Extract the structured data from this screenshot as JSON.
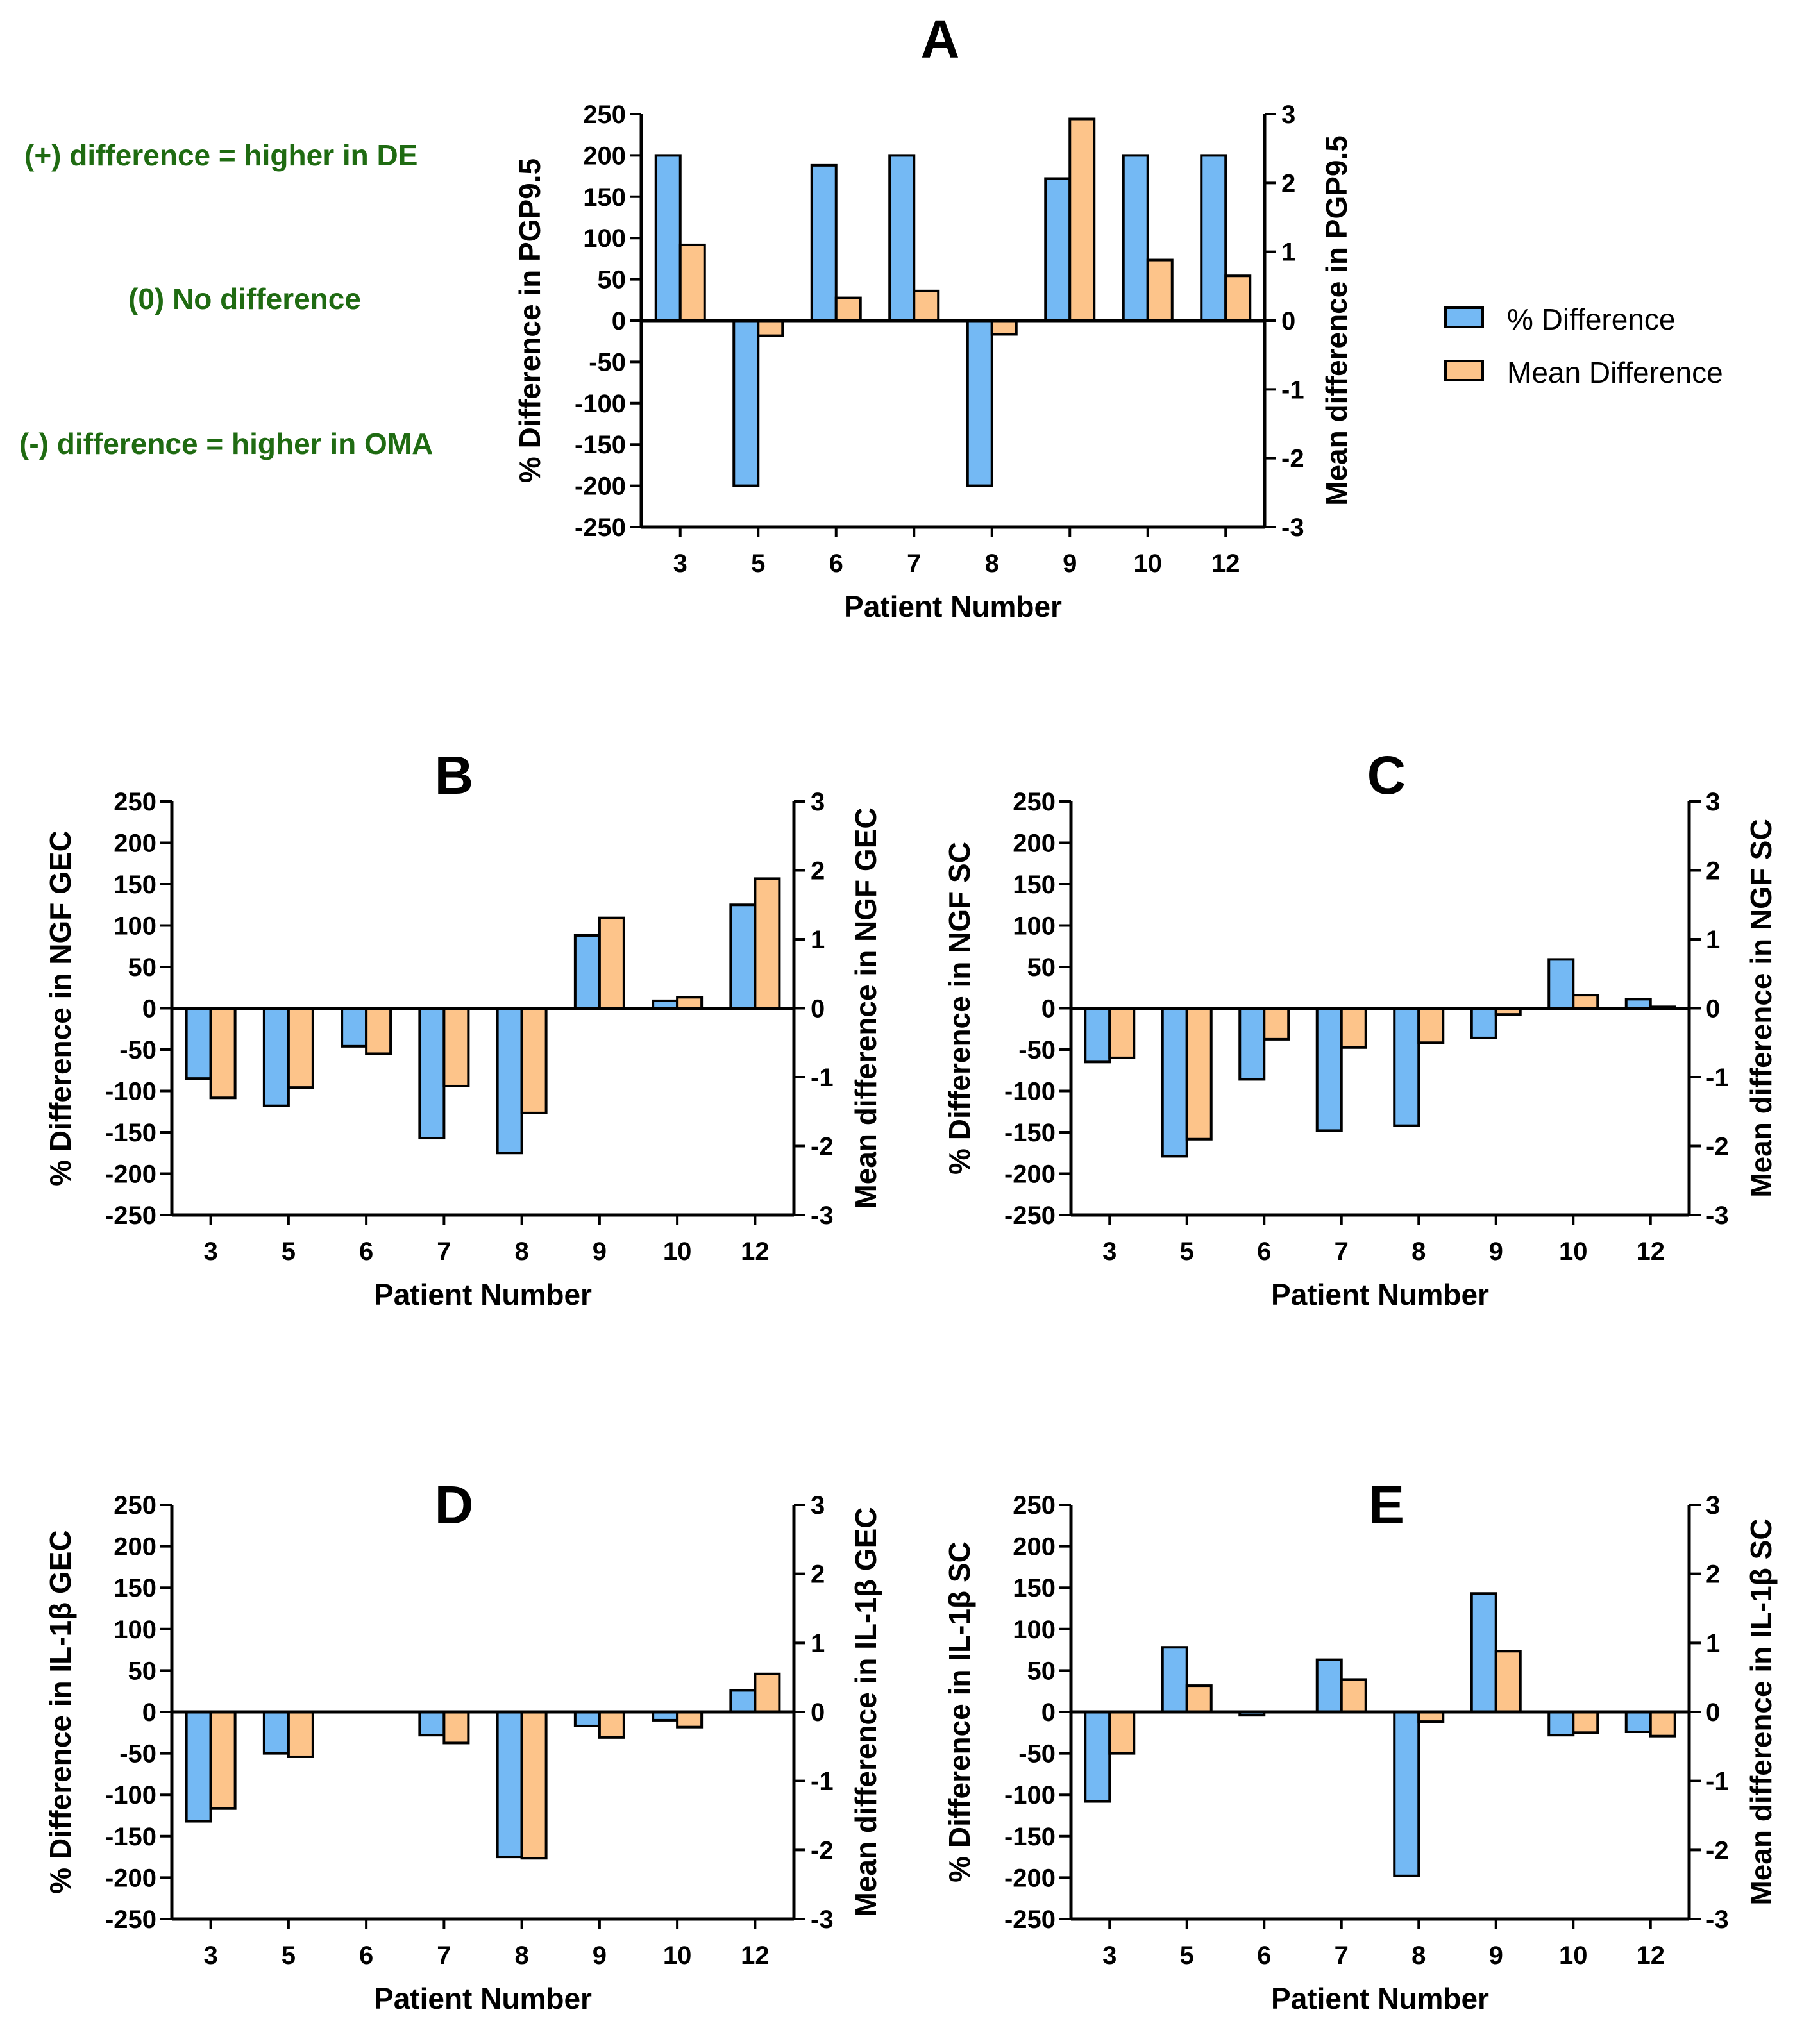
{
  "notes": {
    "positive": "(+) difference = higher in DE",
    "zero": "(0) No difference",
    "negative": "(-) difference = higher in OMA"
  },
  "legend": {
    "pct_label": "% Difference",
    "mean_label": "Mean Difference"
  },
  "colors": {
    "pct": "#74b9f4",
    "mean": "#fdc48a",
    "note": "#1f6b12"
  },
  "chart_data": [
    {
      "type": "bar",
      "panel": "A",
      "categories": [
        "3",
        "5",
        "6",
        "7",
        "8",
        "9",
        "10",
        "12"
      ],
      "series": [
        {
          "name": "% Difference",
          "axis": "left",
          "values": [
            200,
            -200,
            188,
            200,
            -200,
            172,
            200,
            200
          ]
        },
        {
          "name": "Mean Difference",
          "axis": "right",
          "values": [
            1.1,
            -0.22,
            0.33,
            0.43,
            -0.2,
            2.93,
            0.88,
            0.65
          ]
        }
      ],
      "xlabel": "Patient Number",
      "ylabel": "% Difference in PGP9.5",
      "y2label": "Mean difference in PGP9.5",
      "ylim": [
        -250,
        250
      ],
      "y2lim": [
        -3,
        3
      ],
      "yticks": [
        "250",
        "200",
        "150",
        "100",
        "50",
        "0",
        "-50",
        "-100",
        "-150",
        "-200",
        "-250"
      ],
      "y2ticks": [
        "3",
        "2",
        "1",
        "0",
        "-1",
        "-2",
        "-3"
      ]
    },
    {
      "type": "bar",
      "panel": "B",
      "categories": [
        "3",
        "5",
        "6",
        "7",
        "8",
        "9",
        "10",
        "12"
      ],
      "series": [
        {
          "name": "% Difference",
          "axis": "left",
          "values": [
            -85,
            -118,
            -46,
            -157,
            -175,
            88,
            9,
            125
          ]
        },
        {
          "name": "Mean Difference",
          "axis": "right",
          "values": [
            -1.3,
            -1.15,
            -0.66,
            -1.13,
            -1.52,
            1.31,
            0.16,
            1.88
          ]
        }
      ],
      "xlabel": "Patient Number",
      "ylabel": "% Difference in NGF GEC",
      "y2label": "Mean difference in NGF GEC",
      "ylim": [
        -250,
        250
      ],
      "y2lim": [
        -3,
        3
      ],
      "yticks": [
        "250",
        "200",
        "150",
        "100",
        "50",
        "0",
        "-50",
        "-100",
        "-150",
        "-200",
        "-250"
      ],
      "y2ticks": [
        "3",
        "2",
        "1",
        "0",
        "-1",
        "-2",
        "-3"
      ]
    },
    {
      "type": "bar",
      "panel": "C",
      "categories": [
        "3",
        "5",
        "6",
        "7",
        "8",
        "9",
        "10",
        "12"
      ],
      "series": [
        {
          "name": "% Difference",
          "axis": "left",
          "values": [
            -65,
            -179,
            -86,
            -148,
            -142,
            -36,
            59,
            11
          ]
        },
        {
          "name": "Mean Difference",
          "axis": "right",
          "values": [
            -0.72,
            -1.9,
            -0.45,
            -0.57,
            -0.5,
            -0.09,
            0.19,
            0.02
          ]
        }
      ],
      "xlabel": "Patient Number",
      "ylabel": "% Difference in NGF SC",
      "y2label": "Mean difference in NGF SC",
      "ylim": [
        -250,
        250
      ],
      "y2lim": [
        -3,
        3
      ],
      "yticks": [
        "250",
        "200",
        "150",
        "100",
        "50",
        "0",
        "-50",
        "-100",
        "-150",
        "-200",
        "-250"
      ],
      "y2ticks": [
        "3",
        "2",
        "1",
        "0",
        "-1",
        "-2",
        "-3"
      ]
    },
    {
      "type": "bar",
      "panel": "D",
      "categories": [
        "3",
        "5",
        "6",
        "7",
        "8",
        "9",
        "10",
        "12"
      ],
      "series": [
        {
          "name": "% Difference",
          "axis": "left",
          "values": [
            -132,
            -50,
            0,
            -28,
            -175,
            -17,
            -10,
            26
          ]
        },
        {
          "name": "Mean Difference",
          "axis": "right",
          "values": [
            -1.4,
            -0.65,
            0,
            -0.45,
            -2.12,
            -0.37,
            -0.22,
            0.55
          ]
        }
      ],
      "xlabel": "Patient Number",
      "ylabel": "% Difference in IL-1β GEC",
      "y2label": "Mean difference in IL-1β GEC",
      "ylim": [
        -250,
        250
      ],
      "y2lim": [
        -3,
        3
      ],
      "yticks": [
        "250",
        "200",
        "150",
        "100",
        "50",
        "0",
        "-50",
        "-100",
        "-150",
        "-200",
        "-250"
      ],
      "y2ticks": [
        "3",
        "2",
        "1",
        "0",
        "-1",
        "-2",
        "-3"
      ]
    },
    {
      "type": "bar",
      "panel": "E",
      "categories": [
        "3",
        "5",
        "6",
        "7",
        "8",
        "9",
        "10",
        "12"
      ],
      "series": [
        {
          "name": "% Difference",
          "axis": "left",
          "values": [
            -108,
            78,
            -4,
            63,
            -198,
            143,
            -28,
            -24
          ]
        },
        {
          "name": "Mean Difference",
          "axis": "right",
          "values": [
            -0.6,
            0.38,
            0,
            0.47,
            -0.14,
            0.88,
            -0.3,
            -0.35
          ]
        }
      ],
      "xlabel": "Patient Number",
      "ylabel": "% Difference in IL-1β SC",
      "y2label": "Mean difference in IL-1β SC",
      "ylim": [
        -250,
        250
      ],
      "y2lim": [
        -3,
        3
      ],
      "yticks": [
        "250",
        "200",
        "150",
        "100",
        "50",
        "0",
        "-50",
        "-100",
        "-150",
        "-200",
        "-250"
      ],
      "y2ticks": [
        "3",
        "2",
        "1",
        "0",
        "-1",
        "-2",
        "-3"
      ]
    }
  ]
}
